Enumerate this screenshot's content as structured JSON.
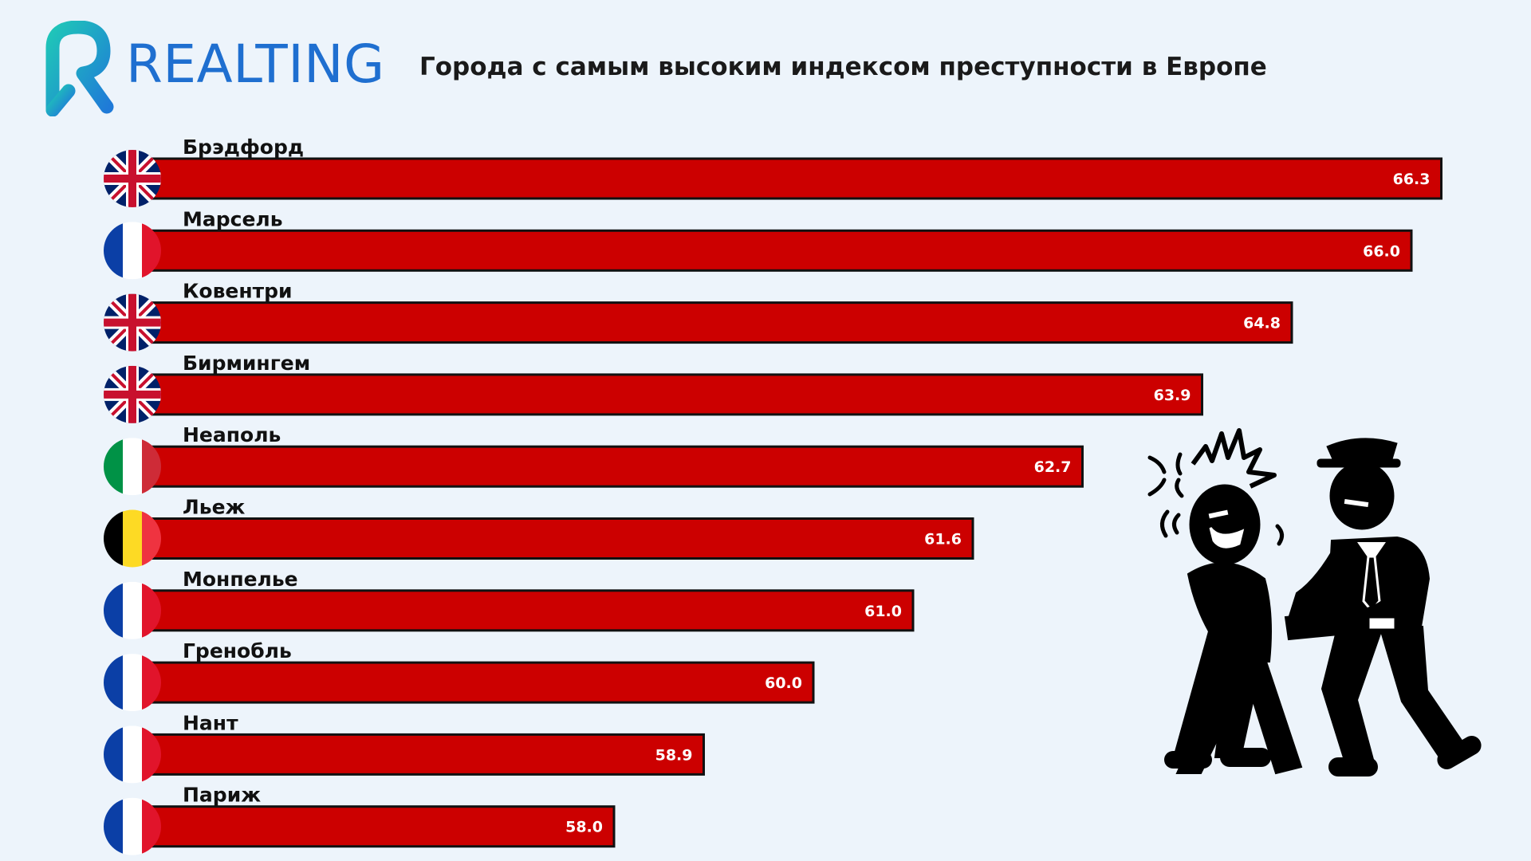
{
  "header": {
    "brand": "REALTING",
    "title": "Города с самым высоким индексом преступности в Европе"
  },
  "colors": {
    "bar": "#cc0000",
    "bar_border": "#111111",
    "brand": "#1f6fd0",
    "logo_gradient_start": "#1fc6b8",
    "logo_gradient_end": "#1f7ad8"
  },
  "chart_data": {
    "type": "bar",
    "orientation": "horizontal",
    "categories": [
      "Брэдфорд",
      "Марсель",
      "Ковентри",
      "Бирмингем",
      "Неаполь",
      "Льеж",
      "Монпелье",
      "Гренобль",
      "Нант",
      "Париж"
    ],
    "values": [
      66.3,
      66.0,
      64.8,
      63.9,
      62.7,
      61.6,
      61.0,
      60.0,
      58.9,
      58.0
    ],
    "value_labels": [
      "66.3",
      "66.0",
      "64.8",
      "63.9",
      "62.7",
      "61.6",
      "61.0",
      "60.0",
      "58.9",
      "58.0"
    ],
    "flags": [
      "uk-flag",
      "france-flag",
      "uk-flag",
      "uk-flag",
      "italy-flag",
      "belgium-flag",
      "france-flag",
      "france-flag",
      "france-flag",
      "france-flag"
    ],
    "title": "Города с самым высоким индексом преступности в Европе",
    "xlabel": "",
    "ylabel": ""
  },
  "illustration": {
    "icon": "police-arrest-icon"
  }
}
